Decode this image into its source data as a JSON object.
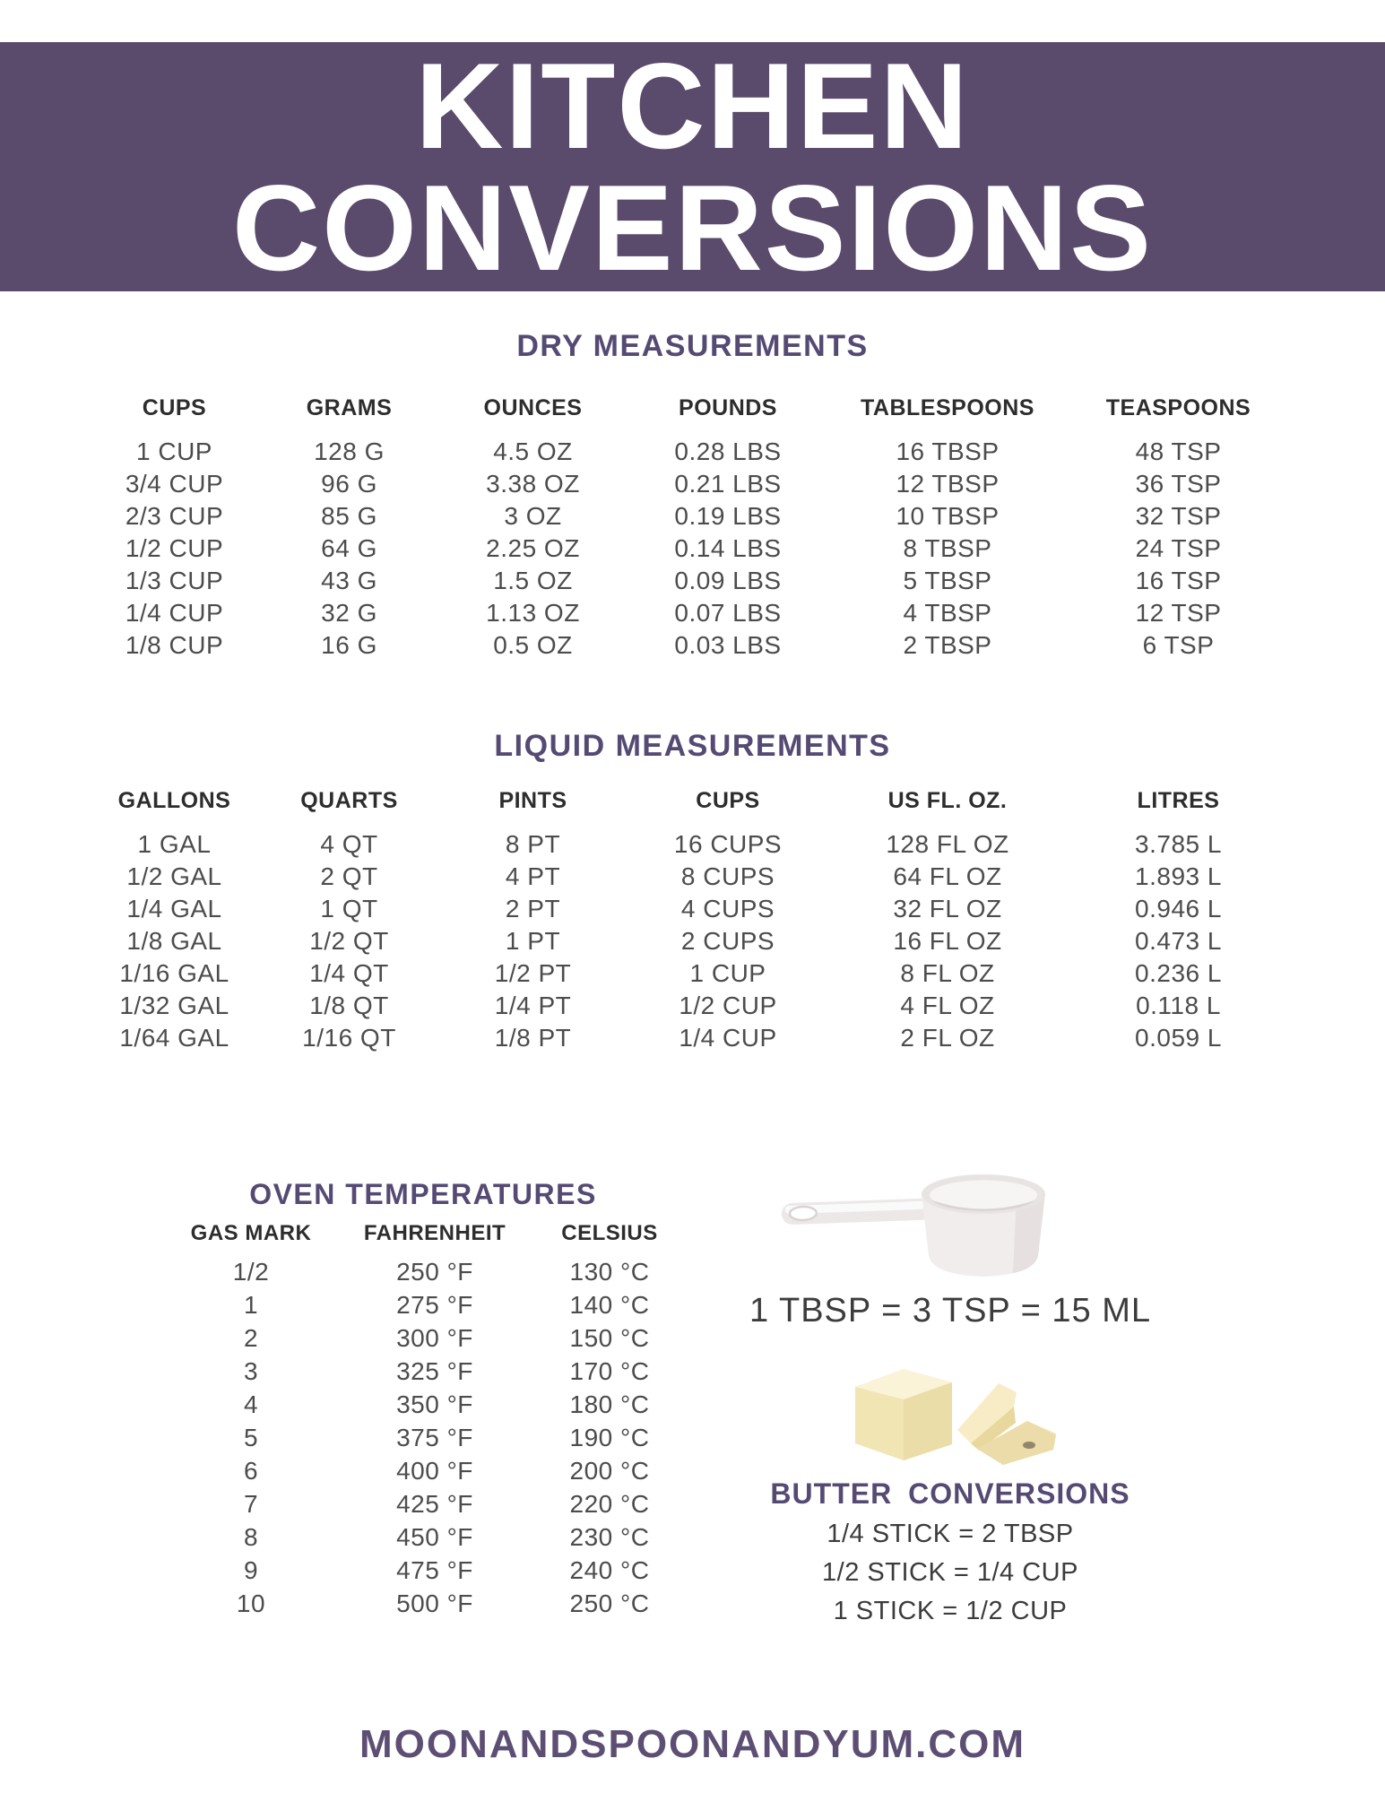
{
  "page": {
    "title_line1": "KITCHEN",
    "title_line2": "CONVERSIONS",
    "footer": "MOONANDSPOONANDYUM.COM"
  },
  "colors": {
    "banner_bg": "#5a4a6b",
    "heading_purple": "#554a73",
    "table_header_text": "#2d2d2d",
    "table_data_text": "#4c4c4c",
    "footer_text": "#5d4f73",
    "butter_yellow": "#f3e6b8",
    "cup_white": "#f1eded"
  },
  "icons": {
    "measuring_cup": "measuring-cup-icon",
    "butter": "butter-icon"
  },
  "dry": {
    "title": "DRY MEASUREMENTS",
    "headers": [
      "CUPS",
      "GRAMS",
      "OUNCES",
      "POUNDS",
      "TABLESPOONS",
      "TEASPOONS"
    ],
    "rows": [
      [
        "1 CUP",
        "128 G",
        "4.5 OZ",
        "0.28 LBS",
        "16 TBSP",
        "48 TSP"
      ],
      [
        "3/4 CUP",
        "96 G",
        "3.38 OZ",
        "0.21 LBS",
        "12 TBSP",
        "36 TSP"
      ],
      [
        "2/3 CUP",
        "85 G",
        "3 OZ",
        "0.19 LBS",
        "10 TBSP",
        "32 TSP"
      ],
      [
        "1/2 CUP",
        "64 G",
        "2.25 OZ",
        "0.14 LBS",
        "8 TBSP",
        "24 TSP"
      ],
      [
        "1/3 CUP",
        "43 G",
        "1.5 OZ",
        "0.09 LBS",
        "5 TBSP",
        "16 TSP"
      ],
      [
        "1/4 CUP",
        "32 G",
        "1.13 OZ",
        "0.07 LBS",
        "4 TBSP",
        "12 TSP"
      ],
      [
        "1/8 CUP",
        "16 G",
        "0.5 OZ",
        "0.03 LBS",
        "2 TBSP",
        "6 TSP"
      ]
    ]
  },
  "liquid": {
    "title": "LIQUID MEASUREMENTS",
    "headers": [
      "GALLONS",
      "QUARTS",
      "PINTS",
      "CUPS",
      "US FL. OZ.",
      "LITRES"
    ],
    "rows": [
      [
        "1 GAL",
        "4 QT",
        "8 PT",
        "16 CUPS",
        "128 FL OZ",
        "3.785 L"
      ],
      [
        "1/2 GAL",
        "2 QT",
        "4 PT",
        "8 CUPS",
        "64 FL OZ",
        "1.893 L"
      ],
      [
        "1/4 GAL",
        "1 QT",
        "2 PT",
        "4 CUPS",
        "32 FL OZ",
        "0.946 L"
      ],
      [
        "1/8 GAL",
        "1/2 QT",
        "1 PT",
        "2 CUPS",
        "16 FL OZ",
        "0.473 L"
      ],
      [
        "1/16 GAL",
        "1/4 QT",
        "1/2 PT",
        "1 CUP",
        "8 FL OZ",
        "0.236 L"
      ],
      [
        "1/32 GAL",
        "1/8 QT",
        "1/4 PT",
        "1/2 CUP",
        "4 FL OZ",
        "0.118 L"
      ],
      [
        "1/64 GAL",
        "1/16 QT",
        "1/8 PT",
        "1/4 CUP",
        "2 FL OZ",
        "0.059 L"
      ]
    ]
  },
  "oven": {
    "title": "OVEN TEMPERATURES",
    "headers": [
      "GAS MARK",
      "FAHRENHEIT",
      "CELSIUS"
    ],
    "rows": [
      [
        "1/2",
        "250 °F",
        "130 °C"
      ],
      [
        "1",
        "275 °F",
        "140 °C"
      ],
      [
        "2",
        "300 °F",
        "150 °C"
      ],
      [
        "3",
        "325 °F",
        "170 °C"
      ],
      [
        "4",
        "350 °F",
        "180 °C"
      ],
      [
        "5",
        "375 °F",
        "190 °C"
      ],
      [
        "6",
        "400 °F",
        "200 °C"
      ],
      [
        "7",
        "425 °F",
        "220 °C"
      ],
      [
        "8",
        "450 °F",
        "230 °C"
      ],
      [
        "9",
        "475 °F",
        "240 °C"
      ],
      [
        "10",
        "500 °F",
        "250 °C"
      ]
    ]
  },
  "spoon_note": "1 TBSP = 3 TSP = 15 ML",
  "butter": {
    "title": "BUTTER CONVERSIONS",
    "rows": [
      "1/4 STICK = 2 TBSP",
      "1/2 STICK = 1/4 CUP",
      "1 STICK = 1/2 CUP"
    ]
  }
}
